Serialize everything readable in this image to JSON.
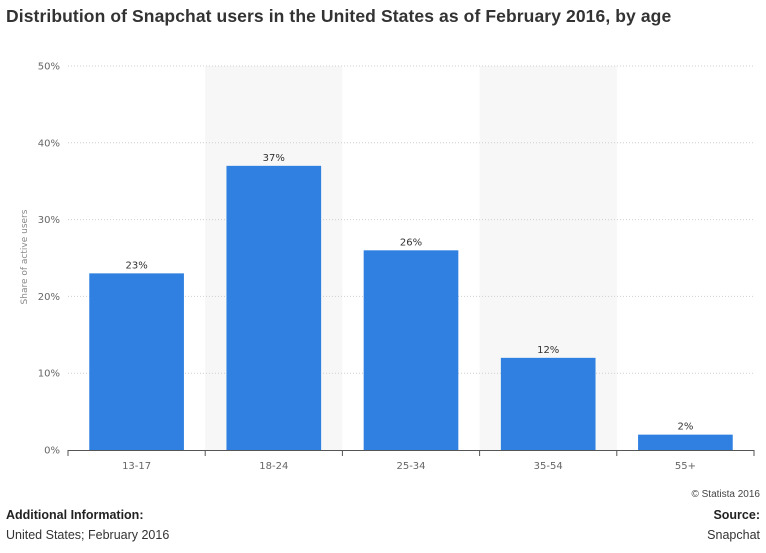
{
  "chart_data": {
    "type": "bar",
    "title": "Distribution of Snapchat users in the United States as of February 2016, by age",
    "categories": [
      "13-17",
      "18-24",
      "25-34",
      "35-54",
      "55+"
    ],
    "values": [
      23,
      37,
      26,
      12,
      2
    ],
    "data_labels": [
      "23%",
      "37%",
      "26%",
      "12%",
      "2%"
    ],
    "xlabel": "",
    "ylabel": "Share of active users",
    "ylim": [
      0,
      50
    ],
    "yticks": [
      0,
      10,
      20,
      30,
      40,
      50
    ],
    "ytick_labels": [
      "0%",
      "10%",
      "20%",
      "30%",
      "40%",
      "50%"
    ],
    "grid": true,
    "legend": "none",
    "bar_color": "#2f80e0",
    "alt_band_color": "#f7f7f7"
  },
  "footer": {
    "copyright": "© Statista 2016",
    "additional_info_label": "Additional Information:",
    "additional_info_value": "United States; February 2016",
    "source_label": "Source:",
    "source_value": "Snapchat"
  }
}
